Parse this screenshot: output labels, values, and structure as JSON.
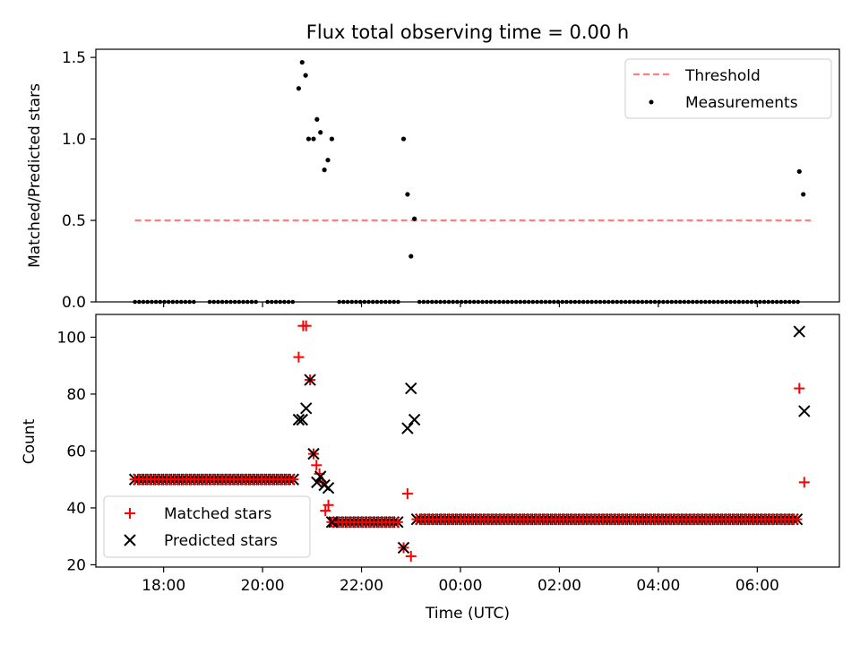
{
  "chart_data": [
    {
      "type": "scatter",
      "title": "Flux total observing time = 0.00 h",
      "xlabel": "",
      "ylabel": "Matched/Predicted stars",
      "ylim": [
        0,
        1.55
      ],
      "yticks": [
        "0.0",
        "0.5",
        "1.0",
        "1.5"
      ],
      "xlim_hours": [
        16.63,
        31.66
      ],
      "legend_position": "upper-right",
      "series": [
        {
          "name": "Threshold",
          "style": "dashed-line",
          "color": "#ff7f7f",
          "x": [
            17.42,
            31.08
          ],
          "y": [
            0.5,
            0.5
          ]
        },
        {
          "name": "Measurements",
          "style": "dot",
          "color": "#000000",
          "points": [
            [
              20.73,
              1.31
            ],
            [
              20.8,
              1.47
            ],
            [
              20.87,
              1.39
            ],
            [
              20.93,
              1.0
            ],
            [
              21.03,
              1.0
            ],
            [
              21.1,
              1.12
            ],
            [
              21.17,
              1.04
            ],
            [
              21.25,
              0.81
            ],
            [
              21.32,
              0.87
            ],
            [
              21.4,
              1.0
            ],
            [
              22.85,
              1.0
            ],
            [
              22.93,
              0.66
            ],
            [
              23.0,
              0.28
            ],
            [
              23.07,
              0.51
            ],
            [
              30.85,
              0.8
            ],
            [
              30.93,
              0.66
            ]
          ],
          "zero_ranges": [
            [
              17.42,
              18.67
            ],
            [
              18.93,
              19.92
            ],
            [
              20.1,
              20.65
            ],
            [
              21.55,
              22.77
            ],
            [
              23.17,
              30.82
            ]
          ],
          "zero_step": 0.085
        }
      ]
    },
    {
      "type": "scatter",
      "xlabel": "Time (UTC)",
      "ylabel": "Count",
      "ylim": [
        19.2,
        108
      ],
      "yticks": [
        "20",
        "40",
        "60",
        "80",
        "100"
      ],
      "xticks": [
        "18:00",
        "20:00",
        "22:00",
        "00:00",
        "02:00",
        "04:00",
        "06:00"
      ],
      "xticks_hours": [
        18,
        20,
        22,
        24,
        26,
        28,
        30
      ],
      "xlim_hours": [
        16.63,
        31.66
      ],
      "legend_position": "lower-left",
      "series": [
        {
          "name": "Matched stars",
          "marker": "plus",
          "color": "#ff0000",
          "points": [
            [
              20.73,
              93
            ],
            [
              20.82,
              104
            ],
            [
              20.88,
              104
            ],
            [
              20.96,
              85
            ],
            [
              21.03,
              59
            ],
            [
              21.09,
              55
            ],
            [
              21.15,
              52
            ],
            [
              21.21,
              49
            ],
            [
              21.27,
              39
            ],
            [
              21.33,
              41
            ],
            [
              21.4,
              35
            ],
            [
              22.85,
              26
            ],
            [
              22.93,
              45
            ],
            [
              23.0,
              23
            ],
            [
              30.85,
              82
            ],
            [
              30.95,
              49
            ]
          ],
          "flat_ranges": [
            {
              "from": 17.42,
              "to": 20.65,
              "value": 50
            },
            {
              "from": 21.45,
              "to": 22.77,
              "value": 35
            },
            {
              "from": 23.12,
              "to": 30.82,
              "value": 36
            }
          ],
          "flat_step": 0.08
        },
        {
          "name": "Predicted stars",
          "marker": "x",
          "color": "#000000",
          "points": [
            [
              20.73,
              71
            ],
            [
              20.8,
              71
            ],
            [
              20.88,
              75
            ],
            [
              20.96,
              85
            ],
            [
              21.03,
              59
            ],
            [
              21.1,
              49
            ],
            [
              21.17,
              51
            ],
            [
              21.25,
              48
            ],
            [
              21.33,
              47
            ],
            [
              21.4,
              35
            ],
            [
              22.85,
              26
            ],
            [
              22.93,
              68
            ],
            [
              23.0,
              82
            ],
            [
              23.07,
              71
            ],
            [
              30.85,
              102
            ],
            [
              30.95,
              74
            ]
          ]
        }
      ]
    }
  ]
}
